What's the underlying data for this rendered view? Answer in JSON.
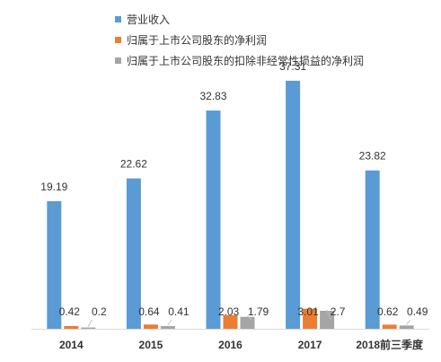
{
  "chart_data": {
    "type": "bar",
    "title": "",
    "xlabel": "",
    "ylabel": "",
    "categories": [
      "2014",
      "2015",
      "2016",
      "2017",
      "2018前三季度"
    ],
    "series": [
      {
        "name": "营业收入",
        "values": [
          19.19,
          22.62,
          32.83,
          37.31,
          23.82
        ],
        "labels": [
          "19.19",
          "22.62",
          "32.83",
          "37.31",
          "23.82"
        ],
        "color": "#5b9bd5"
      },
      {
        "name": "归属于上市公司股东的净利润",
        "values": [
          0.42,
          0.64,
          2.03,
          3.01,
          0.62
        ],
        "labels": [
          "0.42",
          "0.64",
          "2.03",
          "3.01",
          "0.62"
        ],
        "color": "#ed7d31"
      },
      {
        "name": "归属于上市公司股东的扣除非经常性损益的净利润",
        "values": [
          0.2,
          0.41,
          1.79,
          2.7,
          0.49
        ],
        "labels": [
          "0.2",
          "0.41",
          "1.79",
          "2.7",
          "0.49"
        ],
        "color": "#a5a5a5"
      }
    ],
    "ylim": [
      0,
      40
    ],
    "grid": false,
    "legend_position": "top",
    "value_axis_visible": false
  }
}
